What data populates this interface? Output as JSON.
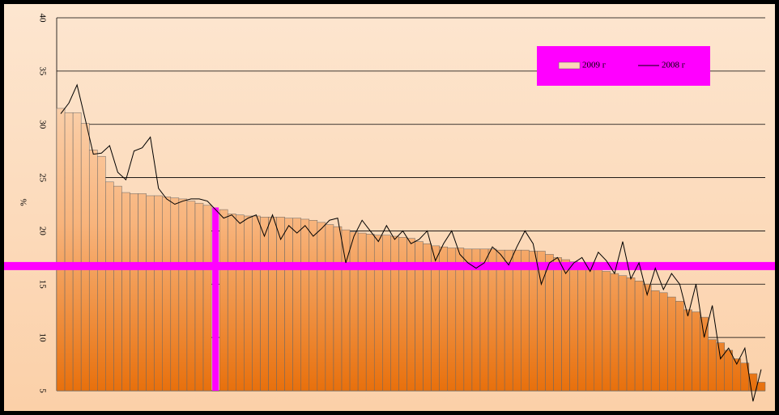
{
  "chart_data": {
    "type": "bar",
    "y_label": "%",
    "ylim": [
      5,
      40
    ],
    "yticks": [
      5,
      10,
      15,
      20,
      25,
      30,
      35,
      40
    ],
    "grid": true,
    "legend": "top-right",
    "reference_line": 16.7,
    "reference_color": "#ff00ff",
    "highlight_index": 19,
    "highlight_color": "#ff00ff",
    "series": [
      {
        "name": "2009 г",
        "type": "bar",
        "color": "#f08030",
        "values": [
          31.5,
          31.1,
          31.1,
          30.1,
          27.6,
          27.0,
          24.6,
          24.2,
          23.6,
          23.5,
          23.5,
          23.3,
          23.3,
          23.2,
          23.1,
          23.0,
          22.8,
          22.6,
          22.4,
          22.2,
          22.0,
          21.6,
          21.5,
          21.4,
          21.4,
          21.3,
          21.3,
          21.3,
          21.2,
          21.2,
          21.1,
          21.0,
          20.8,
          20.6,
          20.4,
          20.1,
          19.9,
          19.8,
          19.7,
          19.6,
          19.6,
          19.5,
          19.4,
          19.3,
          19.0,
          18.8,
          18.6,
          18.5,
          18.4,
          18.4,
          18.3,
          18.3,
          18.3,
          18.3,
          18.2,
          18.2,
          18.2,
          18.2,
          18.1,
          18.1,
          17.8,
          17.5,
          17.3,
          17.1,
          17.0,
          16.8,
          16.5,
          16.2,
          16.0,
          15.8,
          15.6,
          15.3,
          15.0,
          14.4,
          14.2,
          13.8,
          13.4,
          12.6,
          12.4,
          11.9,
          9.8,
          9.5,
          8.8,
          8.0,
          7.6,
          6.6,
          5.8
        ]
      },
      {
        "name": "2008 г",
        "type": "line",
        "color": "#000000",
        "values": [
          31.0,
          32.0,
          33.7,
          30.5,
          27.2,
          27.3,
          28.0,
          25.5,
          24.8,
          27.5,
          27.8,
          28.8,
          24.0,
          23.0,
          22.5,
          22.8,
          23.0,
          23.0,
          22.8,
          22.0,
          21.2,
          21.5,
          20.7,
          21.2,
          21.5,
          19.5,
          21.5,
          19.2,
          20.5,
          19.8,
          20.5,
          19.5,
          20.2,
          21.0,
          21.2,
          17.0,
          19.5,
          21.0,
          20.0,
          19.0,
          20.5,
          19.2,
          20.0,
          18.8,
          19.2,
          20.0,
          17.2,
          18.8,
          20.0,
          17.8,
          17.0,
          16.5,
          17.0,
          18.5,
          17.8,
          16.8,
          18.5,
          20.0,
          18.8,
          15.0,
          17.0,
          17.5,
          16.0,
          17.0,
          17.5,
          16.2,
          18.0,
          17.2,
          16.0,
          19.0,
          15.5,
          17.0,
          14.0,
          16.5,
          14.5,
          16.0,
          15.0,
          12.0,
          15.0,
          10.0,
          13.0,
          8.0,
          9.0,
          7.5,
          9.0,
          4.0,
          7.0
        ]
      }
    ]
  }
}
